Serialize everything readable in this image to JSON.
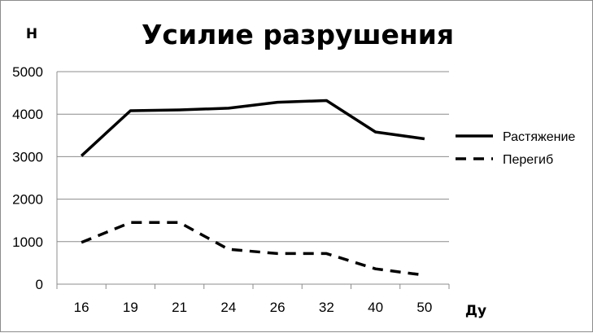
{
  "chart_data": {
    "type": "line",
    "title": "Усилие разрушения",
    "ylabel": "Н",
    "xlabel": "Ду",
    "categories": [
      "16",
      "19",
      "21",
      "24",
      "26",
      "32",
      "40",
      "50"
    ],
    "ylim": [
      0,
      5000
    ],
    "yticks": [
      0,
      1000,
      2000,
      3000,
      4000,
      5000
    ],
    "grid": true,
    "legend": "right",
    "series": [
      {
        "name": "Растяжение",
        "style": "solid",
        "color": "#000000",
        "values": [
          3020,
          4080,
          4100,
          4140,
          4280,
          4320,
          3580,
          3420
        ]
      },
      {
        "name": "Перегиб",
        "style": "dashed",
        "color": "#000000",
        "values": [
          980,
          1450,
          1450,
          820,
          720,
          720,
          360,
          210
        ]
      }
    ]
  }
}
